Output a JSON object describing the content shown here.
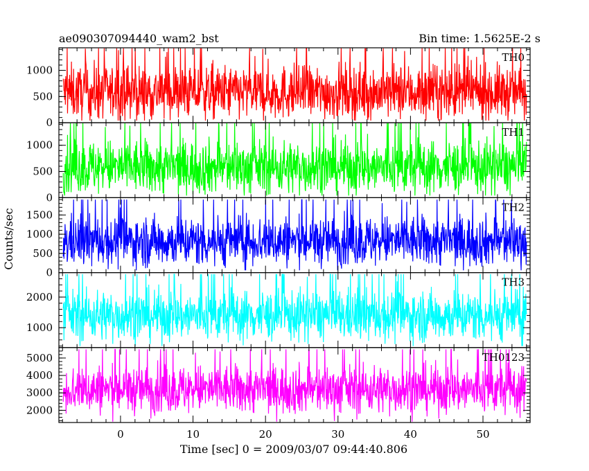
{
  "header": {
    "title": "ae090307094440_wam2_bst",
    "bin_time": "Bin time: 1.5625E-2 s"
  },
  "chart_data": {
    "type": "line",
    "xlabel": "Time [sec] 0 = 2009/03/07 09:44:40.806",
    "ylabel": "Counts/sec",
    "xlim": [
      -8.5,
      56.5
    ],
    "x_range": [
      -7.9,
      56.0
    ],
    "x_ticks": [
      0,
      10,
      20,
      30,
      40,
      50
    ],
    "x_tick_labels": [
      "0",
      "10",
      "20",
      "30",
      "40",
      "50"
    ],
    "panels": [
      {
        "name": "TH0",
        "color": "#ff0000",
        "ylim": [
          0,
          1430
        ],
        "mean": 580,
        "spread": 260,
        "min": 40,
        "max": 1420,
        "yticks": [
          0,
          500,
          1000
        ],
        "ytick_labels": [
          "0",
          "500",
          "1000"
        ]
      },
      {
        "name": "TH1",
        "color": "#00ff00",
        "ylim": [
          0,
          1430
        ],
        "mean": 580,
        "spread": 260,
        "min": 40,
        "max": 1420,
        "yticks": [
          0,
          500,
          1000
        ],
        "ytick_labels": [
          "0",
          "500",
          "1000"
        ]
      },
      {
        "name": "TH2",
        "color": "#0000ff",
        "ylim": [
          0,
          1950
        ],
        "mean": 820,
        "spread": 330,
        "min": 60,
        "max": 1900,
        "yticks": [
          0,
          500,
          1000,
          1500
        ],
        "ytick_labels": [
          "0",
          "500",
          "1000",
          "1500"
        ]
      },
      {
        "name": "TH3",
        "color": "#00ffff",
        "ylim": [
          350,
          2800
        ],
        "mean": 1400,
        "spread": 420,
        "min": 400,
        "max": 2750,
        "yticks": [
          1000,
          2000
        ],
        "ytick_labels": [
          "1000",
          "2000"
        ]
      },
      {
        "name": "TH0123",
        "color": "#ff00ff",
        "ylim": [
          1300,
          5600
        ],
        "mean": 3200,
        "spread": 700,
        "min": 1350,
        "max": 5500,
        "yticks": [
          2000,
          3000,
          4000,
          5000
        ],
        "ytick_labels": [
          "2000",
          "3000",
          "4000",
          "5000"
        ]
      }
    ]
  }
}
